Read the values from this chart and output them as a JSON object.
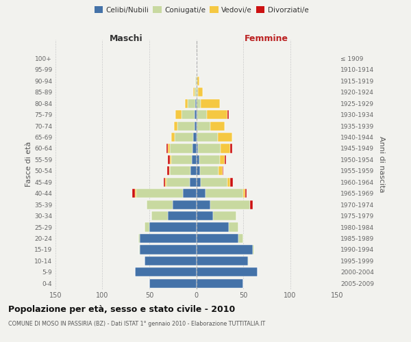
{
  "age_groups": [
    "0-4",
    "5-9",
    "10-14",
    "15-19",
    "20-24",
    "25-29",
    "30-34",
    "35-39",
    "40-44",
    "45-49",
    "50-54",
    "55-59",
    "60-64",
    "65-69",
    "70-74",
    "75-79",
    "80-84",
    "85-89",
    "90-94",
    "95-99",
    "100+"
  ],
  "birth_years": [
    "2005-2009",
    "2000-2004",
    "1995-1999",
    "1990-1994",
    "1985-1989",
    "1980-1984",
    "1975-1979",
    "1970-1974",
    "1965-1969",
    "1960-1964",
    "1955-1959",
    "1950-1954",
    "1945-1949",
    "1940-1944",
    "1935-1939",
    "1930-1934",
    "1925-1929",
    "1920-1924",
    "1915-1919",
    "1910-1914",
    "≤ 1909"
  ],
  "colors": {
    "celibi": "#4472a8",
    "coniugati": "#c8d9a0",
    "vedovi": "#f5c842",
    "divorziati": "#cc1111"
  },
  "maschi_celibi": [
    50,
    65,
    55,
    60,
    60,
    50,
    30,
    25,
    14,
    7,
    6,
    5,
    4,
    3,
    2,
    2,
    1,
    0,
    0,
    0,
    0
  ],
  "maschi_coniugati": [
    0,
    0,
    0,
    1,
    2,
    5,
    18,
    28,
    50,
    25,
    22,
    22,
    24,
    20,
    18,
    14,
    8,
    2,
    1,
    0,
    0
  ],
  "maschi_vedovi": [
    0,
    0,
    0,
    0,
    0,
    0,
    0,
    0,
    1,
    1,
    1,
    1,
    2,
    4,
    4,
    6,
    3,
    1,
    0,
    0,
    0
  ],
  "maschi_divorziati": [
    0,
    0,
    0,
    0,
    0,
    0,
    0,
    0,
    3,
    2,
    2,
    2,
    2,
    0,
    0,
    0,
    0,
    0,
    0,
    0,
    0
  ],
  "femmine_celibi": [
    50,
    65,
    55,
    60,
    45,
    35,
    18,
    15,
    10,
    5,
    4,
    3,
    2,
    1,
    1,
    1,
    0,
    0,
    0,
    0,
    0
  ],
  "femmine_coniugati": [
    0,
    0,
    1,
    2,
    5,
    10,
    25,
    42,
    40,
    28,
    20,
    22,
    24,
    22,
    14,
    10,
    5,
    2,
    1,
    0,
    0
  ],
  "femmine_vedovi": [
    0,
    0,
    0,
    0,
    0,
    0,
    0,
    0,
    2,
    3,
    4,
    5,
    10,
    15,
    15,
    22,
    20,
    5,
    2,
    0,
    0
  ],
  "femmine_divorziati": [
    0,
    0,
    0,
    0,
    0,
    0,
    0,
    3,
    2,
    3,
    1,
    2,
    2,
    0,
    0,
    2,
    0,
    0,
    0,
    0,
    0
  ],
  "xlim": 150,
  "title": "Popolazione per età, sesso e stato civile - 2010",
  "subtitle": "COMUNE DI MOSO IN PASSIRIA (BZ) - Dati ISTAT 1° gennaio 2010 - Elaborazione TUTTITALIA.IT",
  "ylabel_left": "Fasce di età",
  "ylabel_right": "Anni di nascita",
  "legend_labels": [
    "Celibi/Nubili",
    "Coniugati/e",
    "Vedovi/e",
    "Divorziati/e"
  ],
  "maschi_label": "Maschi",
  "femmine_label": "Femmine",
  "background": "#f2f2ee"
}
